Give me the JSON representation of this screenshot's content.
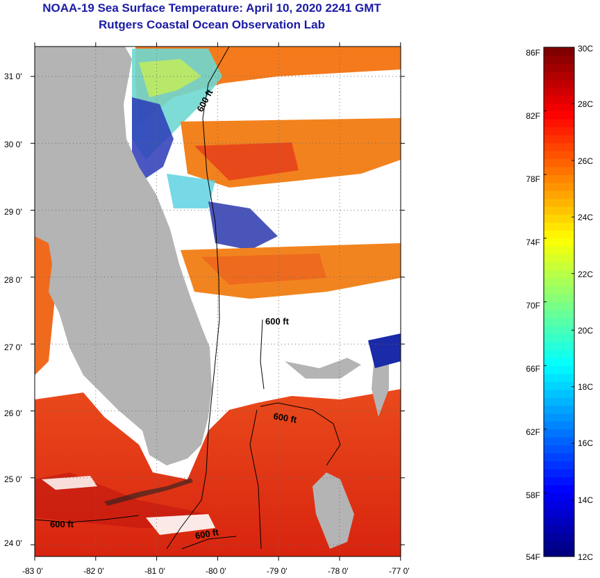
{
  "header": {
    "title": "NOAA-19 Sea Surface Temperature:  April 10, 2020 2241 GMT",
    "subtitle": "Rutgers Coastal Ocean Observation Lab"
  },
  "map": {
    "lat_labels": [
      "31 0'",
      "30 0'",
      "29 0'",
      "28 0'",
      "27 0'",
      "26 0'",
      "25 0'",
      "24 0'"
    ],
    "lon_labels": [
      "-83 0'",
      "-82 0'",
      "-81 0'",
      "-80 0'",
      "-79 0'",
      "-78 0'",
      "-77 0'"
    ],
    "lat_values": [
      31,
      30,
      29,
      28,
      27,
      26,
      25,
      24
    ],
    "lon_values": [
      -83,
      -82,
      -81,
      -80,
      -79,
      -78,
      -77
    ],
    "contour_labels": [
      "600 ft",
      "600 ft",
      "600 ft",
      "600 ft",
      "600 ft"
    ],
    "colors": {
      "land": "#b4b4b4",
      "cloud": "#ffffff",
      "warm": "#e8341c",
      "hot": "#d2200f",
      "mid": "#f47a1c",
      "cool": "#3cc8e6",
      "cold": "#1428b4"
    }
  },
  "colorbar": {
    "fahrenheit_labels": [
      "86F",
      "82F",
      "78F",
      "74F",
      "70F",
      "66F",
      "62F",
      "58F",
      "54F"
    ],
    "celsius_labels": [
      "30C",
      "28C",
      "26C",
      "24C",
      "22C",
      "20C",
      "18C",
      "16C",
      "14C",
      "12C"
    ],
    "range_c": [
      12,
      30
    ],
    "range_f": [
      54,
      86
    ]
  }
}
